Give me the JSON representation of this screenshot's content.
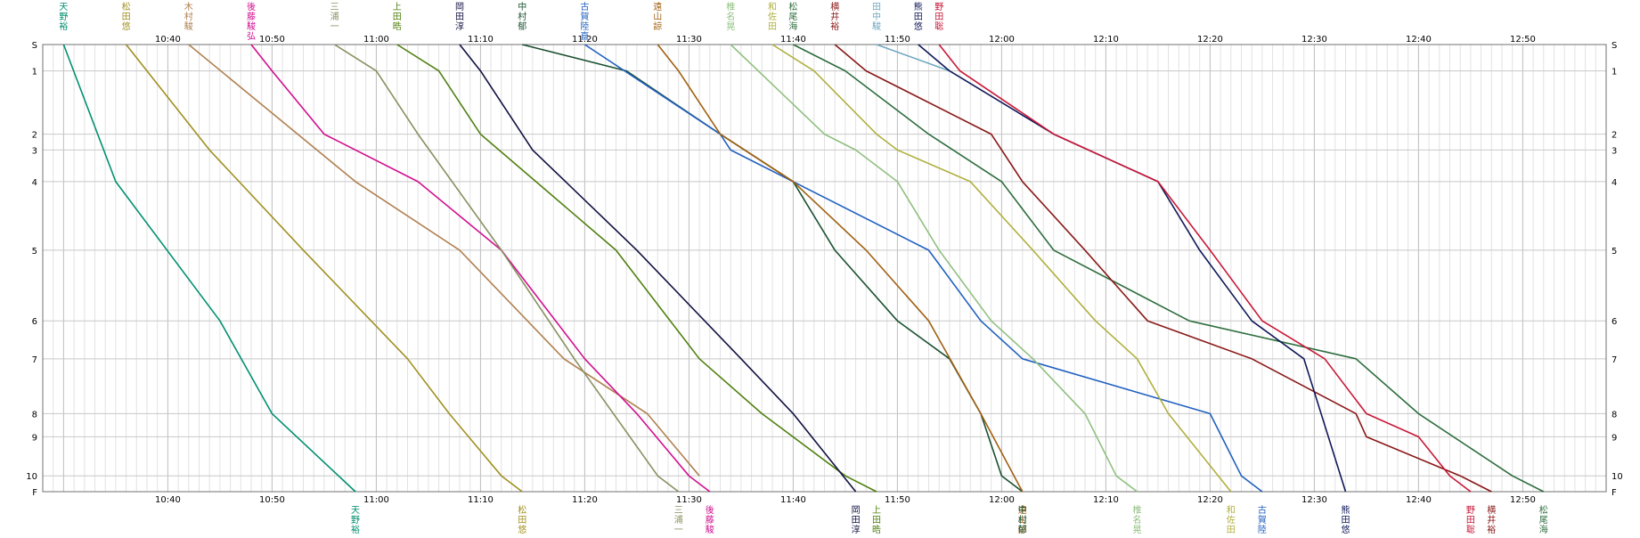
{
  "chart_data": {
    "type": "line",
    "x_unit": "time (HH:MM)",
    "x_range": [
      "10:28",
      "12:58"
    ],
    "x_ticks": [
      "10:40",
      "10:50",
      "11:00",
      "11:10",
      "11:20",
      "11:30",
      "11:40",
      "11:50",
      "12:00",
      "12:10",
      "12:20",
      "12:30",
      "12:40",
      "12:50"
    ],
    "y_categories": [
      "S",
      "1",
      "2",
      "3",
      "4",
      "5",
      "6",
      "7",
      "8",
      "9",
      "10",
      "F"
    ],
    "y_spacing": [
      0,
      25,
      85,
      100,
      130,
      195,
      262,
      298,
      350,
      372,
      409,
      424
    ],
    "grid": true,
    "series": [
      {
        "name": "天野裕",
        "color": "#009070",
        "points": [
          [
            "10:30",
            "S"
          ],
          [
            "10:35",
            "4"
          ],
          [
            "10:45",
            "6"
          ],
          [
            "10:50",
            "8"
          ],
          [
            "10:58",
            "F"
          ]
        ]
      },
      {
        "name": "松田悠",
        "color": "#a09020",
        "points": [
          [
            "10:36",
            "S"
          ],
          [
            "10:38",
            "1"
          ],
          [
            "10:44",
            "3"
          ],
          [
            "10:53",
            "5"
          ],
          [
            "11:03",
            "7"
          ],
          [
            "11:07",
            "8"
          ],
          [
            "11:12",
            "10"
          ],
          [
            "11:14",
            "F"
          ]
        ]
      },
      {
        "name": "木村駿",
        "color": "#b08050",
        "points": [
          [
            "10:42",
            "S"
          ],
          [
            "10:58",
            "4"
          ],
          [
            "11:08",
            "5"
          ],
          [
            "11:18",
            "7"
          ],
          [
            "11:26",
            "8"
          ],
          [
            "11:31",
            "10"
          ]
        ]
      },
      {
        "name": "後藤駿弘",
        "color": "#d01090",
        "points": [
          [
            "10:48",
            "S"
          ],
          [
            "10:50",
            "1"
          ],
          [
            "10:55",
            "2"
          ],
          [
            "11:04",
            "4"
          ],
          [
            "11:12",
            "5"
          ],
          [
            "11:20",
            "7"
          ],
          [
            "11:25",
            "8"
          ],
          [
            "11:30",
            "10"
          ],
          [
            "11:32",
            "F"
          ]
        ]
      },
      {
        "name": "三浦一",
        "color": "#889060",
        "points": [
          [
            "10:56",
            "S"
          ],
          [
            "11:00",
            "1"
          ],
          [
            "11:04",
            "2"
          ],
          [
            "11:12",
            "5"
          ],
          [
            "11:19",
            "7"
          ],
          [
            "11:27",
            "10"
          ],
          [
            "11:29",
            "F"
          ]
        ]
      },
      {
        "name": "上田晧",
        "color": "#508010",
        "points": [
          [
            "11:02",
            "S"
          ],
          [
            "11:06",
            "1"
          ],
          [
            "11:10",
            "2"
          ],
          [
            "11:23",
            "5"
          ],
          [
            "11:31",
            "7"
          ],
          [
            "11:37",
            "8"
          ],
          [
            "11:45",
            "10"
          ],
          [
            "11:48",
            "F"
          ]
        ]
      },
      {
        "name": "岡田淳",
        "color": "#101040",
        "points": [
          [
            "11:08",
            "S"
          ],
          [
            "11:10",
            "1"
          ],
          [
            "11:15",
            "3"
          ],
          [
            "11:25",
            "5"
          ],
          [
            "11:35",
            "7"
          ],
          [
            "11:40",
            "8"
          ],
          [
            "11:46",
            "F"
          ]
        ]
      },
      {
        "name": "中村郁",
        "color": "#1a5030",
        "points": [
          [
            "11:14",
            "S"
          ],
          [
            "11:24",
            "1"
          ],
          [
            "11:33",
            "2"
          ],
          [
            "11:40",
            "4"
          ],
          [
            "11:44",
            "5"
          ],
          [
            "11:50",
            "6"
          ],
          [
            "11:55",
            "7"
          ],
          [
            "11:58",
            "8"
          ],
          [
            "12:00",
            "10"
          ],
          [
            "12:02",
            "F"
          ]
        ]
      },
      {
        "name": "古賀陸直",
        "color": "#2060c0",
        "points": [
          [
            "11:20",
            "S"
          ],
          [
            "11:33",
            "2"
          ],
          [
            "11:34",
            "3"
          ],
          [
            "11:53",
            "5"
          ],
          [
            "11:58",
            "6"
          ],
          [
            "12:02",
            "7"
          ],
          [
            "12:20",
            "8"
          ],
          [
            "12:23",
            "10"
          ],
          [
            "12:25",
            "F"
          ]
        ]
      },
      {
        "name": "遠山諒",
        "color": "#a06010",
        "points": [
          [
            "11:27",
            "S"
          ],
          [
            "11:29",
            "1"
          ],
          [
            "11:33",
            "2"
          ],
          [
            "11:40",
            "4"
          ],
          [
            "11:47",
            "5"
          ],
          [
            "11:53",
            "6"
          ],
          [
            "11:58",
            "8"
          ],
          [
            "12:02",
            "F"
          ]
        ]
      },
      {
        "name": "椎名晃",
        "color": "#90c080",
        "points": [
          [
            "11:34",
            "S"
          ],
          [
            "11:43",
            "2"
          ],
          [
            "11:46",
            "3"
          ],
          [
            "11:50",
            "4"
          ],
          [
            "11:54",
            "5"
          ],
          [
            "11:59",
            "6"
          ],
          [
            "12:03",
            "7"
          ],
          [
            "12:08",
            "8"
          ],
          [
            "12:11",
            "10"
          ],
          [
            "12:13",
            "F"
          ]
        ]
      },
      {
        "name": "和佐田",
        "color": "#b0b040",
        "points": [
          [
            "11:38",
            "S"
          ],
          [
            "11:42",
            "1"
          ],
          [
            "11:48",
            "2"
          ],
          [
            "11:50",
            "3"
          ],
          [
            "11:57",
            "4"
          ],
          [
            "12:03",
            "5"
          ],
          [
            "12:09",
            "6"
          ],
          [
            "12:13",
            "7"
          ],
          [
            "12:16",
            "8"
          ],
          [
            "12:22",
            "F"
          ]
        ]
      },
      {
        "name": "松尾海",
        "color": "#2e6e3e",
        "points": [
          [
            "11:40",
            "S"
          ],
          [
            "11:45",
            "1"
          ],
          [
            "11:53",
            "2"
          ],
          [
            "12:00",
            "4"
          ],
          [
            "12:05",
            "5"
          ],
          [
            "12:18",
            "6"
          ],
          [
            "12:34",
            "7"
          ],
          [
            "12:40",
            "8"
          ],
          [
            "12:49",
            "10"
          ],
          [
            "12:52",
            "F"
          ]
        ]
      },
      {
        "name": "横井裕",
        "color": "#8a1818",
        "points": [
          [
            "11:44",
            "S"
          ],
          [
            "11:47",
            "1"
          ],
          [
            "11:59",
            "2"
          ],
          [
            "12:02",
            "4"
          ],
          [
            "12:08",
            "5"
          ],
          [
            "12:14",
            "6"
          ],
          [
            "12:24",
            "7"
          ],
          [
            "12:34",
            "8"
          ],
          [
            "12:35",
            "9"
          ],
          [
            "12:44",
            "10"
          ],
          [
            "12:47",
            "F"
          ]
        ]
      },
      {
        "name": "田中駿",
        "color": "#70a8c0",
        "points": [
          [
            "11:48",
            "S"
          ],
          [
            "11:55",
            "1"
          ]
        ]
      },
      {
        "name": "熊田悠",
        "color": "#101858",
        "points": [
          [
            "11:52",
            "S"
          ],
          [
            "11:55",
            "1"
          ],
          [
            "12:05",
            "2"
          ],
          [
            "12:15",
            "4"
          ],
          [
            "12:19",
            "5"
          ],
          [
            "12:24",
            "6"
          ],
          [
            "12:29",
            "7"
          ],
          [
            "12:33",
            "F"
          ]
        ]
      },
      {
        "name": "野田聡",
        "color": "#c81838",
        "points": [
          [
            "11:54",
            "S"
          ],
          [
            "11:56",
            "1"
          ],
          [
            "12:05",
            "2"
          ],
          [
            "12:15",
            "4"
          ],
          [
            "12:20",
            "5"
          ],
          [
            "12:25",
            "6"
          ],
          [
            "12:31",
            "7"
          ],
          [
            "12:35",
            "8"
          ],
          [
            "12:40",
            "9"
          ],
          [
            "12:43",
            "10"
          ],
          [
            "12:45",
            "F"
          ]
        ]
      }
    ],
    "top_labels": [
      "天野裕",
      "松田悠",
      "木村駿",
      "後藤駿弘",
      "三浦一",
      "上田晧",
      "岡田淳",
      "中村郁",
      "古賀陸直",
      "遠山諒",
      "椎名晃",
      "和佐田",
      "松尾海",
      "横井裕",
      "田中駿",
      "熊田悠",
      "野田聡"
    ],
    "bottom_labels": [
      "天野裕",
      "松田悠",
      "三浦一",
      "後藤駿",
      "岡田淳",
      "上田晧",
      "遠山諒",
      "中村郁",
      "椎名晃",
      "和佐田",
      "古賀陸直",
      "熊田悠",
      "横井裕",
      "野田聡",
      "松尾海"
    ]
  }
}
